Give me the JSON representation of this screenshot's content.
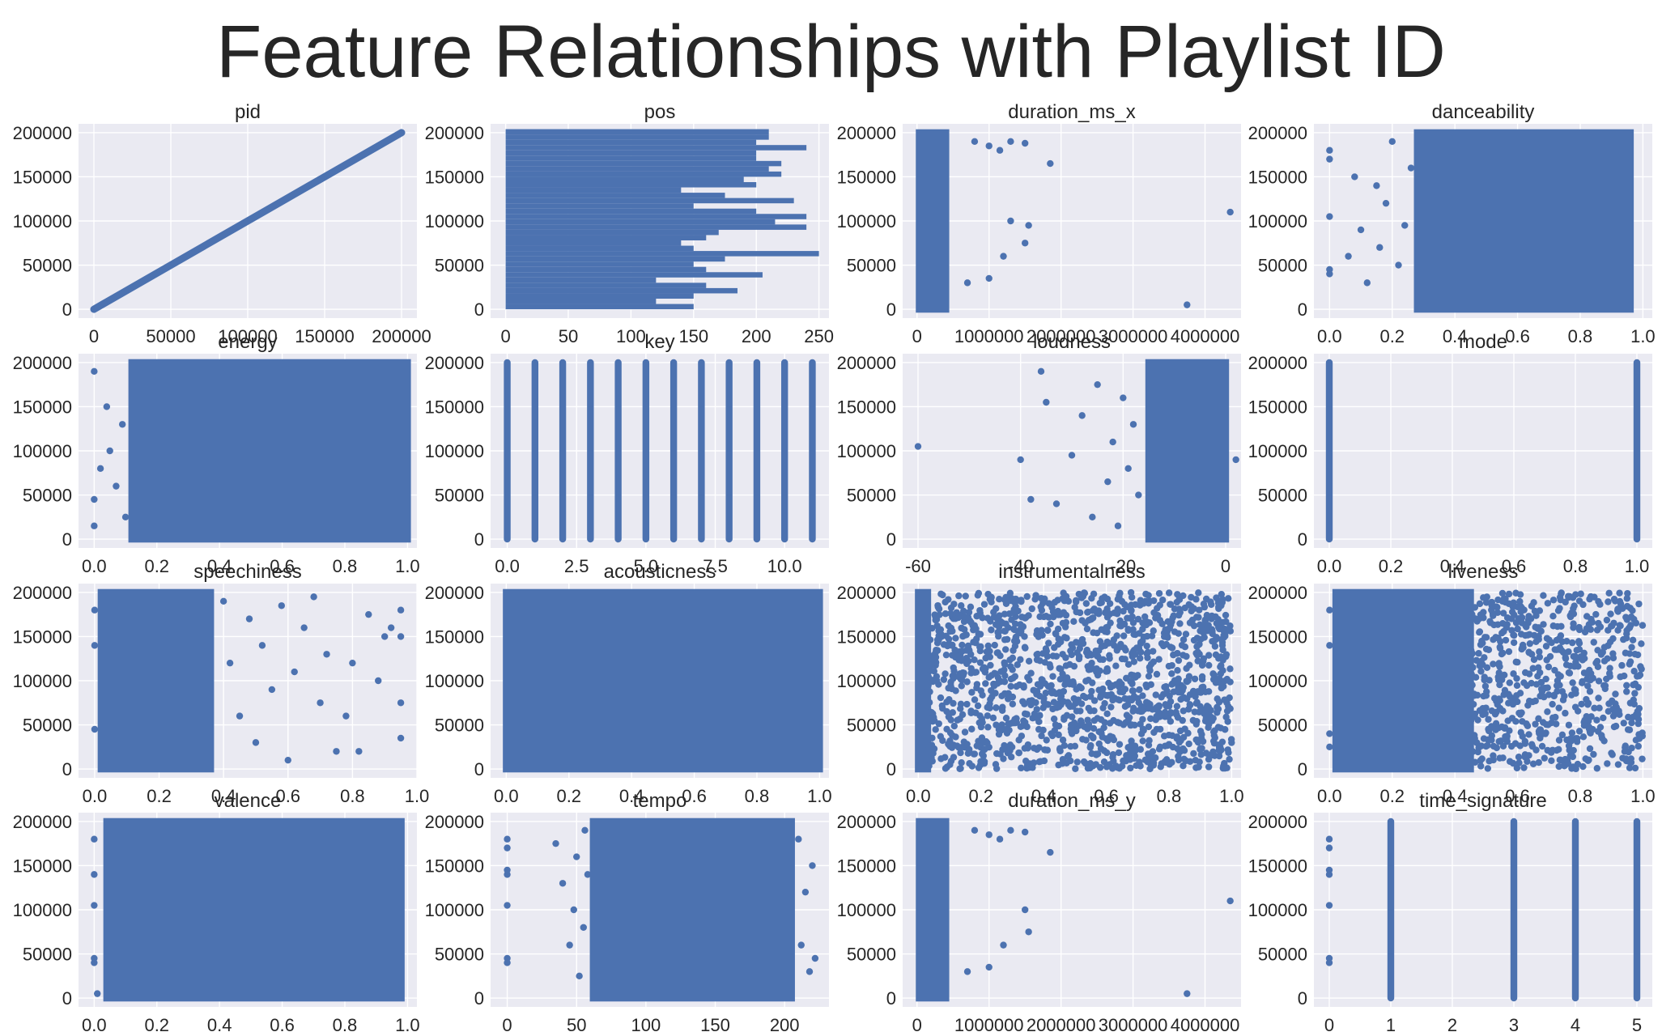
{
  "suptitle": "Feature Relationships with Playlist ID",
  "colors": {
    "marker": "#4c72b0",
    "panel_bg": "#eaeaf2",
    "grid": "#ffffff",
    "text": "#262626"
  },
  "chart_data": [
    {
      "type": "scatter",
      "title": "pid",
      "xlim": [
        -10000,
        210000
      ],
      "ylim": [
        -10000,
        210000
      ],
      "xticks": [
        0,
        50000,
        100000,
        150000,
        200000
      ],
      "yticks": [
        0,
        50000,
        100000,
        150000,
        200000
      ],
      "shape": "diagonal",
      "grid": true
    },
    {
      "type": "scatter",
      "title": "pos",
      "xlim": [
        -12,
        258
      ],
      "ylim": [
        -10000,
        210000
      ],
      "xticks": [
        0,
        50,
        100,
        150,
        200,
        250
      ],
      "yticks": [
        0,
        50000,
        100000,
        150000,
        200000
      ],
      "shape": "bars",
      "grid": true,
      "bars": [
        [
          0,
          150
        ],
        [
          6000,
          120
        ],
        [
          12000,
          150
        ],
        [
          18000,
          185
        ],
        [
          24000,
          160
        ],
        [
          30000,
          120
        ],
        [
          36000,
          205
        ],
        [
          42000,
          160
        ],
        [
          48000,
          150
        ],
        [
          54000,
          175
        ],
        [
          60000,
          250
        ],
        [
          66000,
          150
        ],
        [
          72000,
          140
        ],
        [
          78000,
          160
        ],
        [
          84000,
          170
        ],
        [
          90000,
          240
        ],
        [
          96000,
          215
        ],
        [
          102000,
          240
        ],
        [
          108000,
          200
        ],
        [
          114000,
          150
        ],
        [
          120000,
          230
        ],
        [
          126000,
          175
        ],
        [
          132000,
          140
        ],
        [
          138000,
          200
        ],
        [
          144000,
          190
        ],
        [
          150000,
          220
        ],
        [
          156000,
          210
        ],
        [
          162000,
          220
        ],
        [
          168000,
          200
        ],
        [
          174000,
          200
        ],
        [
          180000,
          240
        ],
        [
          186000,
          200
        ],
        [
          192000,
          210
        ],
        [
          198000,
          210
        ]
      ]
    },
    {
      "type": "scatter",
      "title": "duration_ms_x",
      "xlim": [
        -200000,
        4500000
      ],
      "ylim": [
        -10000,
        210000
      ],
      "xticks": [
        0,
        1000000,
        2000000,
        3000000,
        4000000
      ],
      "yticks": [
        0,
        50000,
        100000,
        150000,
        200000
      ],
      "shape": "dense",
      "dense": [
        [
          30000,
          400000
        ]
      ],
      "grid": true,
      "points": [
        [
          800000,
          190000
        ],
        [
          1000000,
          185000
        ],
        [
          1150000,
          180000
        ],
        [
          1300000,
          190000
        ],
        [
          1500000,
          188000
        ],
        [
          1850000,
          165000
        ],
        [
          1300000,
          100000
        ],
        [
          1550000,
          95000
        ],
        [
          1500000,
          75000
        ],
        [
          1200000,
          60000
        ],
        [
          1000000,
          35000
        ],
        [
          700000,
          30000
        ],
        [
          3750000,
          5000
        ],
        [
          4350000,
          110000
        ]
      ]
    },
    {
      "type": "scatter",
      "title": "danceability",
      "xlim": [
        -0.05,
        1.03
      ],
      "ylim": [
        -10000,
        210000
      ],
      "xticks": [
        0.0,
        0.2,
        0.4,
        0.6,
        0.8,
        1.0
      ],
      "xticklabels": [
        "0.0",
        "0.2",
        "0.4",
        "0.6",
        "0.8",
        "1.0"
      ],
      "yticks": [
        0,
        50000,
        100000,
        150000,
        200000
      ],
      "shape": "dense",
      "dense": [
        [
          0.28,
          0.96
        ]
      ],
      "grid": true,
      "points": [
        [
          0.0,
          180000
        ],
        [
          0.0,
          170000
        ],
        [
          0.0,
          105000
        ],
        [
          0.0,
          45000
        ],
        [
          0.0,
          40000
        ],
        [
          0.06,
          60000
        ],
        [
          0.08,
          150000
        ],
        [
          0.1,
          90000
        ],
        [
          0.12,
          30000
        ],
        [
          0.15,
          140000
        ],
        [
          0.16,
          70000
        ],
        [
          0.18,
          120000
        ],
        [
          0.2,
          190000
        ],
        [
          0.22,
          50000
        ],
        [
          0.24,
          95000
        ],
        [
          0.26,
          160000
        ]
      ]
    },
    {
      "type": "scatter",
      "title": "energy",
      "xlim": [
        -0.05,
        1.03
      ],
      "ylim": [
        -10000,
        210000
      ],
      "xticks": [
        0.0,
        0.2,
        0.4,
        0.6,
        0.8,
        1.0
      ],
      "xticklabels": [
        "0.0",
        "0.2",
        "0.4",
        "0.6",
        "0.8",
        "1.0"
      ],
      "yticks": [
        0,
        50000,
        100000,
        150000,
        200000
      ],
      "shape": "dense",
      "dense": [
        [
          0.12,
          1.0
        ]
      ],
      "grid": true,
      "points": [
        [
          0.0,
          190000
        ],
        [
          0.0,
          45000
        ],
        [
          0.0,
          15000
        ],
        [
          0.02,
          80000
        ],
        [
          0.04,
          150000
        ],
        [
          0.05,
          100000
        ],
        [
          0.07,
          60000
        ],
        [
          0.09,
          130000
        ],
        [
          0.1,
          25000
        ]
      ]
    },
    {
      "type": "scatter",
      "title": "key",
      "xlim": [
        -0.6,
        11.6
      ],
      "ylim": [
        -10000,
        210000
      ],
      "xticks": [
        0.0,
        2.5,
        5.0,
        7.5,
        10.0
      ],
      "xticklabels": [
        "0.0",
        "2.5",
        "5.0",
        "7.5",
        "10.0"
      ],
      "yticks": [
        0,
        50000,
        100000,
        150000,
        200000
      ],
      "shape": "columns",
      "columns": [
        0,
        1,
        2,
        3,
        4,
        5,
        6,
        7,
        8,
        9,
        10,
        11
      ],
      "grid": true
    },
    {
      "type": "scatter",
      "title": "loudness",
      "xlim": [
        -63,
        3
      ],
      "ylim": [
        -10000,
        210000
      ],
      "xticks": [
        -60,
        -40,
        -20,
        0
      ],
      "yticks": [
        0,
        50000,
        100000,
        150000,
        200000
      ],
      "shape": "dense",
      "dense": [
        [
          -15,
          0
        ]
      ],
      "grid": true,
      "points": [
        [
          -60,
          105000
        ],
        [
          -40,
          90000
        ],
        [
          -38,
          45000
        ],
        [
          -36,
          190000
        ],
        [
          -35,
          155000
        ],
        [
          -33,
          40000
        ],
        [
          -30,
          95000
        ],
        [
          -28,
          140000
        ],
        [
          -26,
          25000
        ],
        [
          -25,
          175000
        ],
        [
          -23,
          65000
        ],
        [
          -22,
          110000
        ],
        [
          -21,
          15000
        ],
        [
          -20,
          160000
        ],
        [
          -19,
          80000
        ],
        [
          -18,
          130000
        ],
        [
          -17,
          50000
        ],
        [
          2,
          90000
        ]
      ]
    },
    {
      "type": "scatter",
      "title": "mode",
      "xlim": [
        -0.05,
        1.05
      ],
      "ylim": [
        -10000,
        210000
      ],
      "xticks": [
        0.0,
        0.2,
        0.4,
        0.6,
        0.8,
        1.0
      ],
      "xticklabels": [
        "0.0",
        "0.2",
        "0.4",
        "0.6",
        "0.8",
        "1.0"
      ],
      "yticks": [
        0,
        50000,
        100000,
        150000,
        200000
      ],
      "shape": "columns",
      "columns": [
        0,
        1
      ],
      "grid": true
    },
    {
      "type": "scatter",
      "title": "speechiness",
      "xlim": [
        -0.05,
        1.0
      ],
      "ylim": [
        -10000,
        210000
      ],
      "xticks": [
        0.0,
        0.2,
        0.4,
        0.6,
        0.8,
        1.0
      ],
      "xticklabels": [
        "0.0",
        "0.2",
        "0.4",
        "0.6",
        "0.8",
        "1.0"
      ],
      "yticks": [
        0,
        50000,
        100000,
        150000,
        200000
      ],
      "shape": "dense",
      "dense": [
        [
          0.02,
          0.36
        ]
      ],
      "grid": true,
      "points": [
        [
          0.0,
          180000
        ],
        [
          0.0,
          140000
        ],
        [
          0.0,
          45000
        ],
        [
          0.4,
          190000
        ],
        [
          0.42,
          120000
        ],
        [
          0.45,
          60000
        ],
        [
          0.48,
          170000
        ],
        [
          0.5,
          30000
        ],
        [
          0.52,
          140000
        ],
        [
          0.55,
          90000
        ],
        [
          0.58,
          185000
        ],
        [
          0.6,
          10000
        ],
        [
          0.62,
          110000
        ],
        [
          0.65,
          160000
        ],
        [
          0.68,
          195000
        ],
        [
          0.7,
          75000
        ],
        [
          0.72,
          130000
        ],
        [
          0.75,
          20000
        ],
        [
          0.78,
          60000
        ],
        [
          0.8,
          120000
        ],
        [
          0.82,
          20000
        ],
        [
          0.85,
          175000
        ],
        [
          0.88,
          100000
        ],
        [
          0.9,
          150000
        ],
        [
          0.92,
          160000
        ],
        [
          0.95,
          75000
        ],
        [
          0.95,
          150000
        ],
        [
          0.95,
          180000
        ],
        [
          0.95,
          35000
        ]
      ]
    },
    {
      "type": "scatter",
      "title": "acousticness",
      "xlim": [
        -0.05,
        1.03
      ],
      "ylim": [
        -10000,
        210000
      ],
      "xticks": [
        0.0,
        0.2,
        0.4,
        0.6,
        0.8,
        1.0
      ],
      "xticklabels": [
        "0.0",
        "0.2",
        "0.4",
        "0.6",
        "0.8",
        "1.0"
      ],
      "yticks": [
        0,
        50000,
        100000,
        150000,
        200000
      ],
      "shape": "dense",
      "dense": [
        [
          0.0,
          1.0
        ]
      ],
      "grid": true
    },
    {
      "type": "scatter",
      "title": "instrumentalness",
      "xlim": [
        -0.05,
        1.03
      ],
      "ylim": [
        -10000,
        210000
      ],
      "xticks": [
        0.0,
        0.2,
        0.4,
        0.6,
        0.8,
        1.0
      ],
      "xticklabels": [
        "0.0",
        "0.2",
        "0.4",
        "0.6",
        "0.8",
        "1.0"
      ],
      "yticks": [
        0,
        50000,
        100000,
        150000,
        200000
      ],
      "shape": "dense",
      "dense": [
        [
          0.0,
          0.03
        ]
      ],
      "grid": true,
      "cloud": [
        0.03,
        1.0,
        1400
      ]
    },
    {
      "type": "scatter",
      "title": "liveness",
      "xlim": [
        -0.05,
        1.03
      ],
      "ylim": [
        -10000,
        210000
      ],
      "xticks": [
        0.0,
        0.2,
        0.4,
        0.6,
        0.8,
        1.0
      ],
      "xticklabels": [
        "0.0",
        "0.2",
        "0.4",
        "0.6",
        "0.8",
        "1.0"
      ],
      "yticks": [
        0,
        50000,
        100000,
        150000,
        200000
      ],
      "shape": "dense",
      "dense": [
        [
          0.02,
          0.45
        ]
      ],
      "grid": true,
      "cloud": [
        0.45,
        1.0,
        650
      ],
      "points": [
        [
          0.0,
          180000
        ],
        [
          0.0,
          140000
        ],
        [
          0.0,
          40000
        ],
        [
          0.0,
          25000
        ]
      ]
    },
    {
      "type": "scatter",
      "title": "valence",
      "xlim": [
        -0.05,
        1.03
      ],
      "ylim": [
        -10000,
        210000
      ],
      "xticks": [
        0.0,
        0.2,
        0.4,
        0.6,
        0.8,
        1.0
      ],
      "xticklabels": [
        "0.0",
        "0.2",
        "0.4",
        "0.6",
        "0.8",
        "1.0"
      ],
      "yticks": [
        0,
        50000,
        100000,
        150000,
        200000
      ],
      "shape": "dense",
      "dense": [
        [
          0.04,
          0.98
        ]
      ],
      "grid": true,
      "points": [
        [
          0.0,
          180000
        ],
        [
          0.0,
          140000
        ],
        [
          0.0,
          105000
        ],
        [
          0.0,
          45000
        ],
        [
          0.0,
          40000
        ],
        [
          0.01,
          5000
        ]
      ]
    },
    {
      "type": "scatter",
      "title": "tempo",
      "xlim": [
        -12,
        232
      ],
      "ylim": [
        -10000,
        210000
      ],
      "xticks": [
        0,
        50,
        100,
        150,
        200
      ],
      "yticks": [
        0,
        50000,
        100000,
        150000,
        200000
      ],
      "shape": "dense",
      "dense": [
        [
          62,
          205
        ]
      ],
      "grid": true,
      "points": [
        [
          0,
          180000
        ],
        [
          0,
          170000
        ],
        [
          0,
          145000
        ],
        [
          0,
          140000
        ],
        [
          0,
          105000
        ],
        [
          0,
          45000
        ],
        [
          0,
          40000
        ],
        [
          35,
          175000
        ],
        [
          40,
          130000
        ],
        [
          45,
          60000
        ],
        [
          48,
          100000
        ],
        [
          50,
          160000
        ],
        [
          52,
          25000
        ],
        [
          55,
          80000
        ],
        [
          56,
          190000
        ],
        [
          58,
          140000
        ],
        [
          210,
          180000
        ],
        [
          212,
          60000
        ],
        [
          215,
          120000
        ],
        [
          218,
          30000
        ],
        [
          220,
          150000
        ],
        [
          222,
          45000
        ]
      ]
    },
    {
      "type": "scatter",
      "title": "duration_ms_y",
      "xlim": [
        -200000,
        4500000
      ],
      "ylim": [
        -10000,
        210000
      ],
      "xticks": [
        0,
        1000000,
        2000000,
        3000000,
        4000000
      ],
      "yticks": [
        0,
        50000,
        100000,
        150000,
        200000
      ],
      "shape": "dense",
      "dense": [
        [
          30000,
          400000
        ]
      ],
      "grid": true,
      "points": [
        [
          800000,
          190000
        ],
        [
          1000000,
          185000
        ],
        [
          1150000,
          180000
        ],
        [
          1300000,
          190000
        ],
        [
          1500000,
          188000
        ],
        [
          1850000,
          165000
        ],
        [
          1500000,
          100000
        ],
        [
          1550000,
          75000
        ],
        [
          1200000,
          60000
        ],
        [
          1000000,
          35000
        ],
        [
          700000,
          30000
        ],
        [
          3750000,
          5000
        ],
        [
          4350000,
          110000
        ]
      ]
    },
    {
      "type": "scatter",
      "title": "time_signature",
      "xlim": [
        -0.25,
        5.25
      ],
      "ylim": [
        -10000,
        210000
      ],
      "xticks": [
        0,
        1,
        2,
        3,
        4,
        5
      ],
      "yticks": [
        0,
        50000,
        100000,
        150000,
        200000
      ],
      "shape": "columns",
      "columns": [
        1,
        3,
        4,
        5
      ],
      "grid": true,
      "points": [
        [
          0,
          180000
        ],
        [
          0,
          170000
        ],
        [
          0,
          145000
        ],
        [
          0,
          140000
        ],
        [
          0,
          105000
        ],
        [
          0,
          45000
        ],
        [
          0,
          40000
        ]
      ]
    }
  ]
}
